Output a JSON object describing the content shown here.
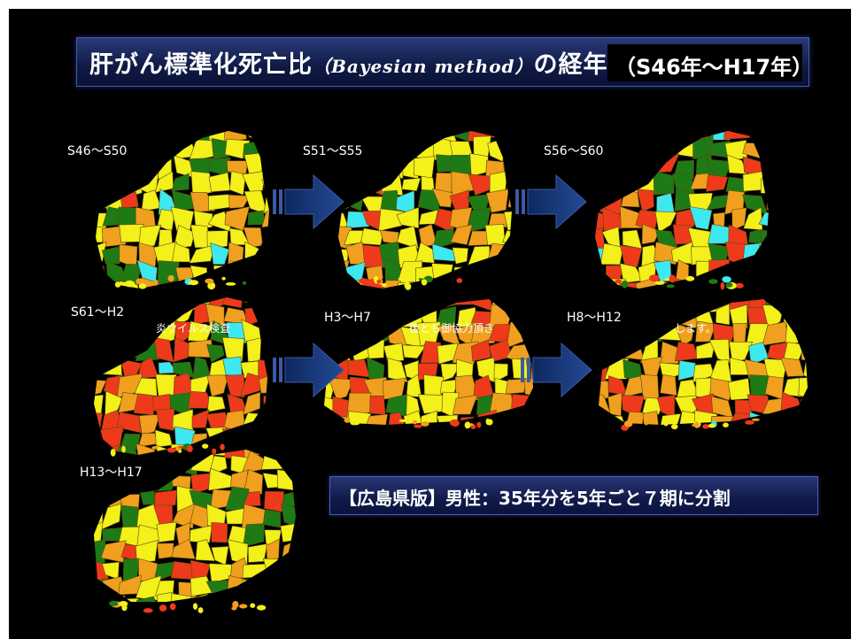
{
  "title": {
    "main_part1": "肝がん標準化死亡比",
    "english": "（Bayesian method）",
    "main_part2": "の経年推移",
    "period": "（S46年〜H17年）"
  },
  "periods": [
    {
      "label": "S46〜S50"
    },
    {
      "label": "S51〜S55"
    },
    {
      "label": "S56〜S60"
    },
    {
      "label": "S61〜H2"
    },
    {
      "label": "H3〜H7"
    },
    {
      "label": "H8〜H12"
    },
    {
      "label": "H13〜H17"
    }
  ],
  "overlay_fragments": [
    "炎ウイルス検査",
    "後とも御協力頂き",
    "します。"
  ],
  "caption": "【広島県版】男性：35年分を5年ごと７期に分割",
  "colors": {
    "background": "#000000",
    "green": "#1e7a14",
    "yellow": "#f3f01a",
    "orange": "#f0a01e",
    "red": "#ee3a1a",
    "cyan": "#3ee8f0",
    "arrow": "#1a3a78"
  }
}
